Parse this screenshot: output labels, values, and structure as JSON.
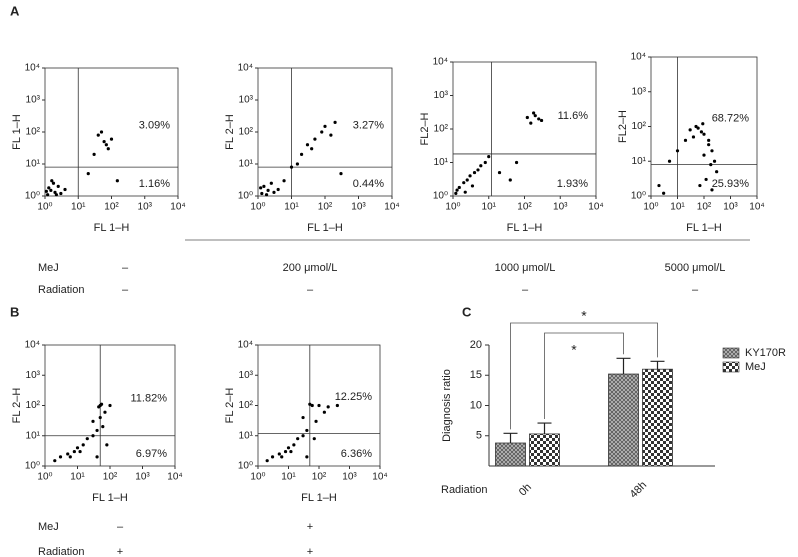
{
  "panel_labels": [
    "A",
    "B",
    "C"
  ],
  "conditions": [
    {
      "rows": [
        {
          "label": "MeJ",
          "values": [
            "–",
            "200 μmol/L",
            "1000 μmol/L",
            "5000 μmol/L"
          ]
        },
        {
          "label": "Radiation",
          "values": [
            "–",
            "–",
            "–",
            "–"
          ]
        }
      ]
    },
    {
      "rows": [
        {
          "label": "MeJ",
          "values": [
            "–",
            "+"
          ]
        },
        {
          "label": "Radiation",
          "values": [
            "+",
            "+"
          ]
        }
      ]
    }
  ],
  "chart_data": [
    {
      "type": "scatter",
      "xlabel": "FL 1–H",
      "ylabel": "FL 1–H",
      "log_scale": true,
      "xlim": [
        1,
        10000
      ],
      "ylim": [
        1,
        10000
      ],
      "xticks": [
        {
          "value": 1,
          "label": "10⁰"
        },
        {
          "value": 10,
          "label": "10¹"
        },
        {
          "value": 100,
          "label": "10²"
        },
        {
          "value": 1000,
          "label": "10³"
        },
        {
          "value": 10000,
          "label": "10⁴"
        }
      ],
      "yticks": [
        {
          "value": 1,
          "label": "10⁰"
        },
        {
          "value": 10,
          "label": "10¹"
        },
        {
          "value": 100,
          "label": "10²"
        },
        {
          "value": 1000,
          "label": "10³"
        },
        {
          "value": 10000,
          "label": "10⁴"
        }
      ],
      "gate_x": 10,
      "gate_y": 8,
      "upper_right": "3.09%",
      "lower_right": "1.16%",
      "color": "#000000",
      "x": [
        1.2,
        1.5,
        2,
        2.5,
        1.3,
        3,
        1.8,
        1.1,
        4,
        2.2,
        1.6,
        60,
        40,
        80,
        100,
        50,
        70,
        30,
        20,
        150
      ],
      "y": [
        1.1,
        1.5,
        1.3,
        2,
        1.8,
        1.2,
        2.5,
        1.4,
        1.6,
        1.1,
        3,
        50,
        80,
        30,
        60,
        100,
        40,
        20,
        5,
        3
      ]
    },
    {
      "type": "scatter",
      "xlabel": "FL 1–H",
      "ylabel": "FL 2–H",
      "log_scale": true,
      "xlim": [
        1,
        10000
      ],
      "ylim": [
        1,
        10000
      ],
      "xticks": [
        {
          "value": 1,
          "label": "10⁰"
        },
        {
          "value": 10,
          "label": "10¹"
        },
        {
          "value": 100,
          "label": "10²"
        },
        {
          "value": 1000,
          "label": "10³"
        },
        {
          "value": 10000,
          "label": "10⁴"
        }
      ],
      "yticks": [
        {
          "value": 1,
          "label": "10⁰"
        },
        {
          "value": 10,
          "label": "10¹"
        },
        {
          "value": 100,
          "label": "10²"
        },
        {
          "value": 1000,
          "label": "10³"
        },
        {
          "value": 10000,
          "label": "10⁴"
        }
      ],
      "gate_x": 10,
      "gate_y": 8,
      "upper_right": "3.27%",
      "lower_right": "0.44%",
      "color": "#000000",
      "x": [
        1.3,
        2,
        1.5,
        3,
        2.5,
        1.2,
        4,
        1.8,
        6,
        10,
        20,
        30,
        50,
        80,
        100,
        150,
        200,
        40,
        15,
        300
      ],
      "y": [
        1.2,
        1.5,
        2,
        1.3,
        2.5,
        1.8,
        1.6,
        1.1,
        3,
        8,
        20,
        40,
        60,
        100,
        150,
        80,
        200,
        30,
        10,
        5
      ]
    },
    {
      "type": "scatter",
      "xlabel": "FL 1–H",
      "ylabel": "FL2–H",
      "log_scale": true,
      "xlim": [
        1,
        10000
      ],
      "ylim": [
        1,
        10000
      ],
      "xticks": [
        {
          "value": 1,
          "label": "10⁰"
        },
        {
          "value": 10,
          "label": "10¹"
        },
        {
          "value": 100,
          "label": "10²"
        },
        {
          "value": 1000,
          "label": "10³"
        },
        {
          "value": 10000,
          "label": "10⁴"
        }
      ],
      "yticks": [
        {
          "value": 1,
          "label": "10⁰"
        },
        {
          "value": 10,
          "label": "10¹"
        },
        {
          "value": 100,
          "label": "10²"
        },
        {
          "value": 1000,
          "label": "10³"
        },
        {
          "value": 10000,
          "label": "10⁴"
        }
      ],
      "gate_x": 12,
      "gate_y": 18,
      "upper_right": "11.6%",
      "lower_right": "1.93%",
      "color": "#000000",
      "x": [
        1.2,
        1.5,
        2,
        2.5,
        3,
        4,
        5,
        6,
        8,
        10,
        1.3,
        2.2,
        3.5,
        150,
        200,
        250,
        300,
        180,
        120,
        20,
        40,
        60
      ],
      "y": [
        1.2,
        1.8,
        2.5,
        3,
        4,
        5,
        6,
        8,
        10,
        15,
        1.5,
        1.3,
        2,
        150,
        250,
        200,
        180,
        300,
        220,
        5,
        3,
        10
      ]
    },
    {
      "type": "scatter",
      "xlabel": "FL 1–H",
      "ylabel": "FL2–H",
      "log_scale": true,
      "xlim": [
        1,
        10000
      ],
      "ylim": [
        1,
        10000
      ],
      "xticks": [
        {
          "value": 1,
          "label": "10⁰"
        },
        {
          "value": 10,
          "label": "10¹"
        },
        {
          "value": 100,
          "label": "10²"
        },
        {
          "value": 1000,
          "label": "10³"
        },
        {
          "value": 10000,
          "label": "10⁴"
        }
      ],
      "yticks": [
        {
          "value": 1,
          "label": "10⁰"
        },
        {
          "value": 10,
          "label": "10¹"
        },
        {
          "value": 100,
          "label": "10²"
        },
        {
          "value": 1000,
          "label": "10³"
        },
        {
          "value": 10000,
          "label": "10⁴"
        }
      ],
      "gate_x": 10,
      "gate_y": 8,
      "upper_right": "68.72%",
      "lower_right": "25.93%",
      "color": "#000000",
      "x": [
        30,
        50,
        80,
        100,
        60,
        40,
        150,
        200,
        250,
        120,
        70,
        90,
        300,
        200,
        150,
        20,
        10,
        5,
        2,
        3,
        100,
        180
      ],
      "y": [
        80,
        100,
        70,
        60,
        90,
        50,
        40,
        20,
        10,
        3,
        2,
        120,
        5,
        1.5,
        30,
        40,
        20,
        10,
        2,
        1.2,
        15,
        8
      ]
    },
    {
      "type": "scatter",
      "xlabel": "FL 1–H",
      "ylabel": "FL 2–H",
      "log_scale": true,
      "xlim": [
        1,
        10000
      ],
      "ylim": [
        1,
        10000
      ],
      "xticks": [
        {
          "value": 1,
          "label": "10⁰"
        },
        {
          "value": 10,
          "label": "10¹"
        },
        {
          "value": 100,
          "label": "10²"
        },
        {
          "value": 1000,
          "label": "10³"
        },
        {
          "value": 10000,
          "label": "10⁴"
        }
      ],
      "yticks": [
        {
          "value": 1,
          "label": "10⁰"
        },
        {
          "value": 10,
          "label": "10¹"
        },
        {
          "value": 100,
          "label": "10²"
        },
        {
          "value": 1000,
          "label": "10³"
        },
        {
          "value": 10000,
          "label": "10⁴"
        }
      ],
      "gate_x": 50,
      "gate_y": 10,
      "upper_right": "11.82%",
      "lower_right": "6.97%",
      "color": "#000000",
      "x": [
        2,
        3,
        5,
        8,
        10,
        15,
        20,
        30,
        40,
        12,
        6,
        50,
        55,
        45,
        60,
        50,
        70,
        100,
        30,
        40,
        80
      ],
      "y": [
        1.5,
        2,
        2.5,
        3,
        4,
        5,
        8,
        10,
        15,
        3,
        2,
        100,
        110,
        90,
        20,
        40,
        60,
        100,
        30,
        2,
        5
      ]
    },
    {
      "type": "scatter",
      "xlabel": "FL 1–H",
      "ylabel": "FL 2–H",
      "log_scale": true,
      "xlim": [
        1,
        10000
      ],
      "ylim": [
        1,
        10000
      ],
      "xticks": [
        {
          "value": 1,
          "label": "10⁰"
        },
        {
          "value": 10,
          "label": "10¹"
        },
        {
          "value": 100,
          "label": "10²"
        },
        {
          "value": 1000,
          "label": "10³"
        },
        {
          "value": 10000,
          "label": "10⁴"
        }
      ],
      "yticks": [
        {
          "value": 1,
          "label": "10⁰"
        },
        {
          "value": 10,
          "label": "10¹"
        },
        {
          "value": 100,
          "label": "10²"
        },
        {
          "value": 1000,
          "label": "10³"
        },
        {
          "value": 10000,
          "label": "10⁴"
        }
      ],
      "gate_x": 50,
      "gate_y": 12,
      "upper_right": "12.25%",
      "lower_right": "6.36%",
      "color": "#000000",
      "x": [
        2,
        3,
        5,
        8,
        10,
        15,
        20,
        30,
        40,
        12,
        6,
        50,
        60,
        100,
        200,
        400,
        80,
        150,
        40,
        30,
        70
      ],
      "y": [
        1.5,
        2,
        2.5,
        3,
        4,
        5,
        8,
        10,
        15,
        3,
        2,
        110,
        100,
        100,
        90,
        100,
        30,
        60,
        2,
        40,
        8
      ]
    },
    {
      "type": "bar",
      "ylabel": "Diagnosis ratio",
      "xlabel": "Radiation",
      "categories": [
        "0h",
        "48h"
      ],
      "ylim": [
        0,
        20
      ],
      "yticks": [
        5,
        10,
        15,
        20
      ],
      "significance": [
        "*",
        "*"
      ],
      "series": [
        {
          "name": "KY170R",
          "color": "#8c8c8c",
          "values": [
            3.8,
            15.2
          ],
          "errors": [
            1.6,
            2.6
          ]
        },
        {
          "name": "MeJ",
          "color": "#3a3a3a",
          "values": [
            5.3,
            16.0
          ],
          "errors": [
            1.8,
            1.3
          ]
        }
      ]
    }
  ]
}
